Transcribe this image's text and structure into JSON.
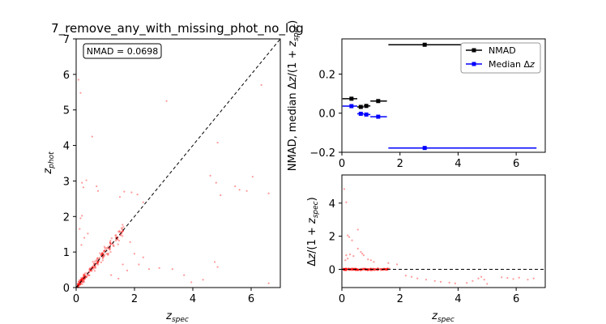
{
  "figure_title": "7_remove_any_with_missing_phot_no_log",
  "colors": {
    "scatter": "#ff0000",
    "nmad": "#000000",
    "median": "#0000ff",
    "diag": "#000000"
  },
  "chart_data": [
    {
      "id": "main",
      "type": "scatter",
      "title": "7_remove_any_with_missing_phot_no_log",
      "xlabel": "z_spec",
      "ylabel": "z_phot",
      "xlim": [
        0,
        7
      ],
      "ylim": [
        0,
        7
      ],
      "xticks": [
        "0",
        "2",
        "4",
        "6"
      ],
      "yticks": [
        "0",
        "1",
        "2",
        "3",
        "4",
        "5",
        "6",
        "7"
      ],
      "annotation": "NMAD = 0.0698",
      "reference_line": "y = x (dashed)",
      "outliers": [
        [
          0.08,
          5.85
        ],
        [
          0.15,
          5.48
        ],
        [
          0.55,
          4.25
        ],
        [
          3.1,
          5.25
        ],
        [
          4.85,
          4.08
        ],
        [
          6.35,
          5.7
        ],
        [
          0.2,
          2.95
        ],
        [
          0.25,
          2.82
        ],
        [
          0.35,
          3.02
        ],
        [
          0.7,
          2.85
        ],
        [
          0.75,
          2.72
        ],
        [
          0.2,
          2.02
        ],
        [
          0.15,
          1.95
        ],
        [
          1.5,
          2.55
        ],
        [
          1.65,
          2.7
        ],
        [
          1.9,
          2.68
        ],
        [
          2.1,
          2.62
        ],
        [
          2.3,
          2.4
        ],
        [
          4.6,
          3.15
        ],
        [
          4.8,
          2.95
        ],
        [
          4.95,
          2.6
        ],
        [
          5.45,
          2.85
        ],
        [
          5.6,
          2.75
        ],
        [
          5.85,
          2.72
        ],
        [
          6.05,
          3.12
        ],
        [
          6.6,
          2.65
        ],
        [
          0.12,
          1.65
        ],
        [
          0.28,
          1.4
        ],
        [
          0.18,
          1.2
        ],
        [
          0.4,
          1.52
        ],
        [
          2.3,
          0.85
        ],
        [
          2.5,
          0.52
        ],
        [
          2.85,
          0.55
        ],
        [
          3.3,
          0.52
        ],
        [
          3.7,
          0.35
        ],
        [
          3.95,
          0.15
        ],
        [
          4.35,
          0.22
        ],
        [
          4.75,
          0.72
        ],
        [
          4.85,
          0.58
        ],
        [
          6.6,
          0.12
        ],
        [
          1.85,
          1.28
        ],
        [
          2.0,
          0.95
        ],
        [
          1.6,
          0.65
        ],
        [
          1.75,
          0.48
        ],
        [
          2.15,
          0.65
        ],
        [
          1.45,
          0.25
        ],
        [
          1.2,
          0.35
        ],
        [
          0.3,
          0.25
        ]
      ]
    },
    {
      "id": "binned",
      "type": "errorbar",
      "xlabel": "",
      "ylabel": "NMAD, median Δz/(1+z_spec)",
      "xlim": [
        0,
        7
      ],
      "ylim": [
        -0.2,
        0.38
      ],
      "xticks": [
        "0",
        "2",
        "4",
        "6"
      ],
      "yticks": [
        "−0.2",
        "0.0",
        "0.2"
      ],
      "legend_position": "top-right",
      "series": [
        {
          "name": "NMAD",
          "points": [
            {
              "x": 0.33,
              "y": 0.074,
              "xmin": 0.02,
              "xmax": 0.53
            },
            {
              "x": 0.65,
              "y": 0.032,
              "xmin": 0.53,
              "xmax": 0.75
            },
            {
              "x": 0.84,
              "y": 0.037,
              "xmin": 0.75,
              "xmax": 0.98
            },
            {
              "x": 1.25,
              "y": 0.062,
              "xmin": 0.98,
              "xmax": 1.55
            },
            {
              "x": 2.85,
              "y": 0.35,
              "xmin": 1.6,
              "xmax": 6.7
            }
          ]
        },
        {
          "name": "Median Δz",
          "points": [
            {
              "x": 0.33,
              "y": 0.036,
              "xmin": 0.02,
              "xmax": 0.53
            },
            {
              "x": 0.65,
              "y": -0.003,
              "xmin": 0.53,
              "xmax": 0.75
            },
            {
              "x": 0.84,
              "y": -0.007,
              "xmin": 0.75,
              "xmax": 0.98
            },
            {
              "x": 1.25,
              "y": -0.018,
              "xmin": 0.98,
              "xmax": 1.55
            },
            {
              "x": 2.85,
              "y": -0.178,
              "xmin": 1.6,
              "xmax": 6.7
            }
          ]
        }
      ]
    },
    {
      "id": "residual",
      "type": "scatter",
      "xlabel": "z_spec",
      "ylabel": "Δz/(1+z_spec)",
      "xlim": [
        0,
        7
      ],
      "ylim": [
        -1.1,
        5.7
      ],
      "xticks": [
        "0",
        "2",
        "4",
        "6"
      ],
      "yticks": [
        "0",
        "2",
        "4"
      ],
      "reference_line": "y = 0 (dashed)",
      "outliers": [
        [
          0.08,
          4.85
        ],
        [
          0.15,
          4.05
        ],
        [
          0.55,
          2.4
        ],
        [
          0.2,
          2.05
        ],
        [
          0.25,
          1.95
        ],
        [
          0.35,
          1.75
        ],
        [
          0.7,
          0.95
        ],
        [
          0.75,
          0.85
        ],
        [
          0.15,
          0.85
        ],
        [
          0.2,
          0.65
        ],
        [
          0.12,
          0.55
        ],
        [
          0.28,
          0.9
        ],
        [
          0.4,
          0.8
        ],
        [
          0.55,
          1.25
        ],
        [
          0.65,
          1.05
        ],
        [
          0.9,
          0.6
        ],
        [
          1.0,
          0.55
        ],
        [
          1.1,
          0.45
        ],
        [
          1.6,
          0.38
        ],
        [
          1.9,
          0.3
        ],
        [
          2.2,
          -0.38
        ],
        [
          2.4,
          -0.45
        ],
        [
          2.6,
          -0.55
        ],
        [
          2.9,
          -0.62
        ],
        [
          3.2,
          -0.7
        ],
        [
          3.4,
          -0.75
        ],
        [
          3.7,
          -0.8
        ],
        [
          3.9,
          -0.85
        ],
        [
          4.3,
          -0.82
        ],
        [
          4.5,
          -0.7
        ],
        [
          4.7,
          -0.55
        ],
        [
          4.8,
          -0.45
        ],
        [
          4.9,
          -0.62
        ],
        [
          5.0,
          -0.88
        ],
        [
          5.5,
          -0.48
        ],
        [
          5.7,
          -0.52
        ],
        [
          5.9,
          -0.58
        ],
        [
          6.1,
          -0.5
        ],
        [
          6.4,
          -0.62
        ],
        [
          6.6,
          -0.55
        ]
      ]
    }
  ]
}
